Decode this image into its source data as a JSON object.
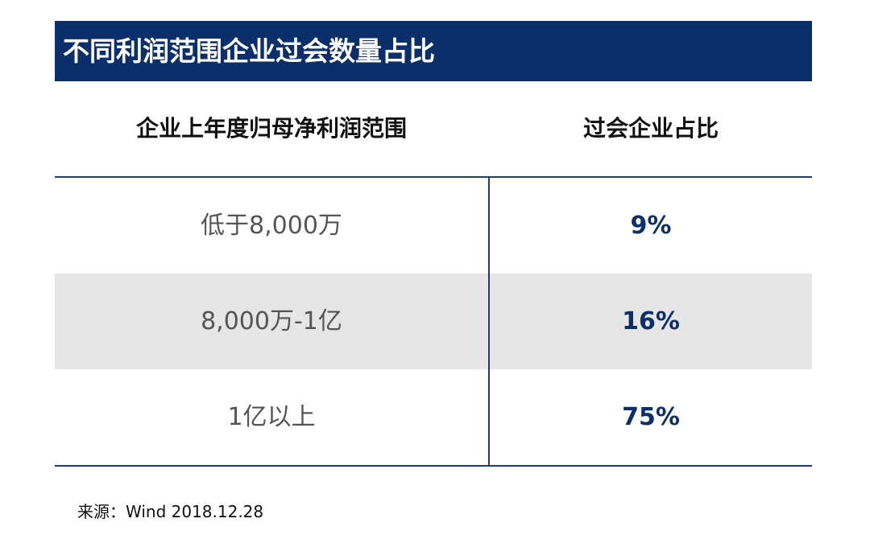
{
  "title": "不同利润范围企业过会数量占比",
  "table": {
    "headers": [
      "企业上年度归母净利润范围",
      "过会企业占比"
    ],
    "rows": [
      {
        "range": "低于8,000万",
        "share": "9%"
      },
      {
        "range": "8,000万-1亿",
        "share": "16%"
      },
      {
        "range": "1亿以上",
        "share": "75%"
      }
    ]
  },
  "source": "来源：Wind   2018.12.28",
  "colors": {
    "title_bg": "#0b2f6b",
    "title_text": "#ffffff",
    "accent_text": "#0b2f6b",
    "row_shade": "#e6e6e6",
    "rule": "#1f3c78"
  },
  "chart_data": {
    "type": "table",
    "title": "不同利润范围企业过会数量占比",
    "columns": [
      "企业上年度归母净利润范围",
      "过会企业占比"
    ],
    "rows": [
      [
        "低于8,000万",
        "9%"
      ],
      [
        "8,000万-1亿",
        "16%"
      ],
      [
        "1亿以上",
        "75%"
      ]
    ],
    "values": [
      9,
      16,
      75
    ]
  }
}
